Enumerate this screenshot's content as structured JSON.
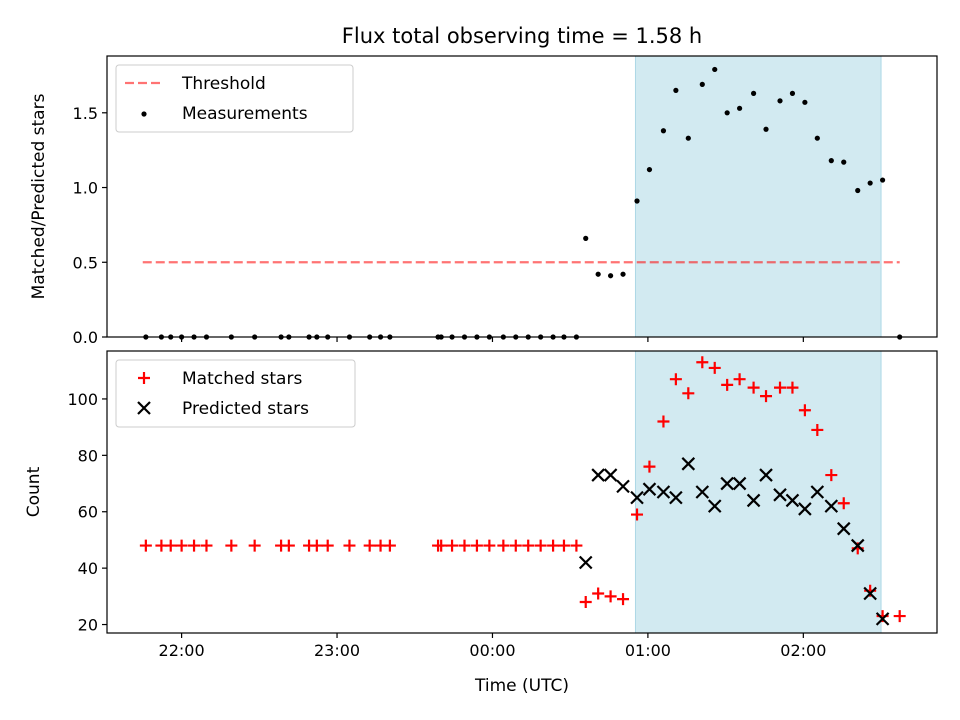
{
  "figure": {
    "title": "Flux total observing time = 1.58 h",
    "xlabel": "Time (UTC)"
  },
  "colors": {
    "shade": "#add8e6",
    "threshold": "#ff0000",
    "measurement": "#000000",
    "matched": "#ff0000",
    "predicted": "#000000"
  },
  "chart_data": [
    {
      "type": "scatter",
      "ylabel": "Matched/Predicted stars",
      "xlim": [
        -2.48,
        2.86
      ],
      "ylim": [
        0.0,
        1.88
      ],
      "x_unit": "hours relative to 00:00 UTC",
      "xticks": [
        -2,
        -1,
        0,
        1,
        2
      ],
      "xtick_labels": [],
      "yticks": [
        0.0,
        0.5,
        1.0,
        1.5
      ],
      "ytick_labels": [
        "0.0",
        "0.5",
        "1.0",
        "1.5"
      ],
      "shaded_interval": [
        0.92,
        2.5
      ],
      "legend": {
        "position": "upper-left",
        "entries": [
          "Threshold",
          "Measurements"
        ]
      },
      "threshold": {
        "name": "Threshold",
        "y": 0.5,
        "x_range": [
          -2.25,
          2.62
        ],
        "style": "dashed"
      },
      "series": [
        {
          "name": "Measurements",
          "marker": "dot",
          "points": [
            [
              -2.23,
              0
            ],
            [
              -2.13,
              0
            ],
            [
              -2.07,
              0
            ],
            [
              -2.0,
              0
            ],
            [
              -1.92,
              0
            ],
            [
              -1.84,
              0
            ],
            [
              -1.68,
              0
            ],
            [
              -1.53,
              0
            ],
            [
              -1.36,
              0
            ],
            [
              -1.31,
              0
            ],
            [
              -1.18,
              0
            ],
            [
              -1.13,
              0
            ],
            [
              -1.06,
              0
            ],
            [
              -0.92,
              0
            ],
            [
              -0.79,
              0
            ],
            [
              -0.72,
              0
            ],
            [
              -0.66,
              0
            ],
            [
              -0.35,
              0
            ],
            [
              -0.33,
              0
            ],
            [
              -0.26,
              0
            ],
            [
              -0.18,
              0
            ],
            [
              -0.1,
              0
            ],
            [
              -0.02,
              0
            ],
            [
              0.07,
              0
            ],
            [
              0.15,
              0
            ],
            [
              0.23,
              0
            ],
            [
              0.31,
              0
            ],
            [
              0.39,
              0
            ],
            [
              0.46,
              0
            ],
            [
              0.54,
              0
            ],
            [
              0.6,
              0.66
            ],
            [
              0.68,
              0.42
            ],
            [
              0.76,
              0.41
            ],
            [
              0.84,
              0.42
            ],
            [
              0.93,
              0.91
            ],
            [
              1.01,
              1.12
            ],
            [
              1.1,
              1.38
            ],
            [
              1.18,
              1.65
            ],
            [
              1.26,
              1.33
            ],
            [
              1.35,
              1.69
            ],
            [
              1.43,
              1.79
            ],
            [
              1.51,
              1.5
            ],
            [
              1.59,
              1.53
            ],
            [
              1.68,
              1.63
            ],
            [
              1.76,
              1.39
            ],
            [
              1.85,
              1.58
            ],
            [
              1.93,
              1.63
            ],
            [
              2.01,
              1.57
            ],
            [
              2.09,
              1.33
            ],
            [
              2.18,
              1.18
            ],
            [
              2.26,
              1.17
            ],
            [
              2.35,
              0.98
            ],
            [
              2.43,
              1.03
            ],
            [
              2.51,
              1.05
            ],
            [
              2.62,
              0
            ]
          ]
        }
      ]
    },
    {
      "type": "scatter",
      "ylabel": "Count",
      "xlim": [
        -2.48,
        2.86
      ],
      "ylim": [
        17,
        117
      ],
      "x_unit": "hours relative to 00:00 UTC",
      "xticks": [
        -2,
        -1,
        0,
        1,
        2
      ],
      "xtick_labels": [
        "22:00",
        "23:00",
        "00:00",
        "01:00",
        "02:00"
      ],
      "yticks": [
        20,
        40,
        60,
        80,
        100
      ],
      "ytick_labels": [
        "20",
        "40",
        "60",
        "80",
        "100"
      ],
      "shaded_interval": [
        0.92,
        2.5
      ],
      "legend": {
        "position": "upper-left",
        "entries": [
          "Matched stars",
          "Predicted stars"
        ]
      },
      "series": [
        {
          "name": "Matched stars",
          "marker": "plus",
          "points": [
            [
              -2.23,
              48
            ],
            [
              -2.13,
              48
            ],
            [
              -2.07,
              48
            ],
            [
              -2.0,
              48
            ],
            [
              -1.92,
              48
            ],
            [
              -1.84,
              48
            ],
            [
              -1.68,
              48
            ],
            [
              -1.53,
              48
            ],
            [
              -1.36,
              48
            ],
            [
              -1.31,
              48
            ],
            [
              -1.18,
              48
            ],
            [
              -1.13,
              48
            ],
            [
              -1.06,
              48
            ],
            [
              -0.92,
              48
            ],
            [
              -0.79,
              48
            ],
            [
              -0.72,
              48
            ],
            [
              -0.66,
              48
            ],
            [
              -0.35,
              48
            ],
            [
              -0.33,
              48
            ],
            [
              -0.26,
              48
            ],
            [
              -0.18,
              48
            ],
            [
              -0.1,
              48
            ],
            [
              -0.02,
              48
            ],
            [
              0.07,
              48
            ],
            [
              0.15,
              48
            ],
            [
              0.23,
              48
            ],
            [
              0.31,
              48
            ],
            [
              0.39,
              48
            ],
            [
              0.46,
              48
            ],
            [
              0.54,
              48
            ],
            [
              0.6,
              28
            ],
            [
              0.68,
              31
            ],
            [
              0.76,
              30
            ],
            [
              0.84,
              29
            ],
            [
              0.93,
              59
            ],
            [
              1.01,
              76
            ],
            [
              1.1,
              92
            ],
            [
              1.18,
              107
            ],
            [
              1.26,
              102
            ],
            [
              1.35,
              113
            ],
            [
              1.43,
              111
            ],
            [
              1.51,
              105
            ],
            [
              1.59,
              107
            ],
            [
              1.68,
              104
            ],
            [
              1.76,
              101
            ],
            [
              1.85,
              104
            ],
            [
              1.93,
              104
            ],
            [
              2.01,
              96
            ],
            [
              2.09,
              89
            ],
            [
              2.18,
              73
            ],
            [
              2.26,
              63
            ],
            [
              2.35,
              47
            ],
            [
              2.43,
              32
            ],
            [
              2.51,
              23
            ],
            [
              2.62,
              23
            ]
          ]
        },
        {
          "name": "Predicted stars",
          "marker": "x",
          "points": [
            [
              0.6,
              42
            ],
            [
              0.68,
              73
            ],
            [
              0.76,
              73
            ],
            [
              0.84,
              69
            ],
            [
              0.93,
              65
            ],
            [
              1.01,
              68
            ],
            [
              1.1,
              67
            ],
            [
              1.18,
              65
            ],
            [
              1.26,
              77
            ],
            [
              1.35,
              67
            ],
            [
              1.43,
              62
            ],
            [
              1.51,
              70
            ],
            [
              1.59,
              70
            ],
            [
              1.68,
              64
            ],
            [
              1.76,
              73
            ],
            [
              1.85,
              66
            ],
            [
              1.93,
              64
            ],
            [
              2.01,
              61
            ],
            [
              2.09,
              67
            ],
            [
              2.18,
              62
            ],
            [
              2.26,
              54
            ],
            [
              2.35,
              48
            ],
            [
              2.43,
              31
            ],
            [
              2.51,
              22
            ]
          ]
        }
      ]
    }
  ]
}
